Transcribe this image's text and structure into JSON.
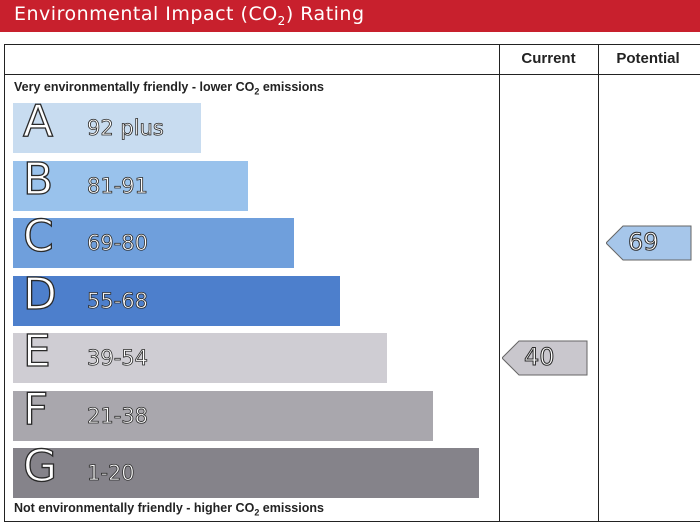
{
  "header": {
    "title_pre": "Environmental Impact (CO",
    "title_sub": "2",
    "title_post": ") Rating",
    "bg_color": "#c8202d"
  },
  "columns": {
    "current": "Current",
    "potential": "Potential"
  },
  "captions": {
    "top_pre": "Very environmentally friendly - lower CO",
    "top_sub": "2",
    "top_post": " emissions",
    "bottom_pre": "Not environmentally friendly - higher CO",
    "bottom_sub": "2",
    "bottom_post": " emissions"
  },
  "chart_data": {
    "type": "bar",
    "categories": [
      "A",
      "B",
      "C",
      "D",
      "E",
      "F",
      "G"
    ],
    "bands": [
      {
        "letter": "A",
        "range": "92 plus",
        "color": "#c8dcf0"
      },
      {
        "letter": "B",
        "range": "81-91",
        "color": "#99c2ec"
      },
      {
        "letter": "C",
        "range": "69-80",
        "color": "#6f9fdc"
      },
      {
        "letter": "D",
        "range": "55-68",
        "color": "#4d7fcc"
      },
      {
        "letter": "E",
        "range": "39-54",
        "color": "#cfcdd3"
      },
      {
        "letter": "F",
        "range": "21-38",
        "color": "#a9a7ad"
      },
      {
        "letter": "G",
        "range": "1-20",
        "color": "#85838a"
      }
    ],
    "current": {
      "value": 40,
      "label": "40",
      "band": "E",
      "color": "#c9c7cd"
    },
    "potential": {
      "value": 69,
      "label": "69",
      "band": "C",
      "color": "#a6c6ea"
    }
  }
}
